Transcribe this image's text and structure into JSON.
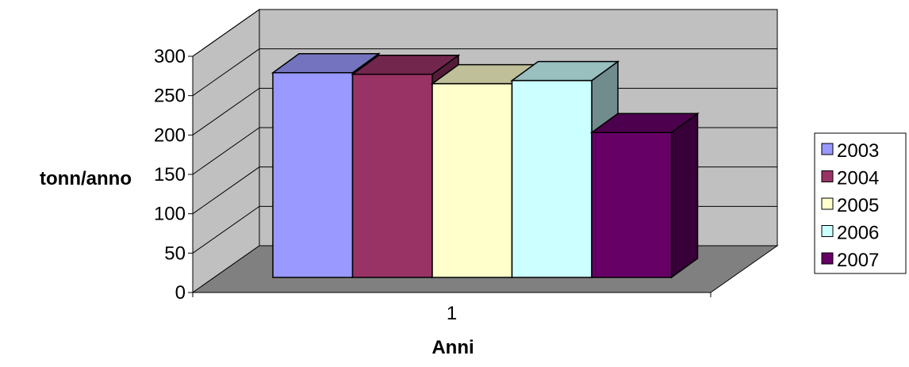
{
  "chart_data": {
    "type": "bar",
    "style": "3d-clustered-column",
    "title": "",
    "xlabel": "Anni",
    "ylabel": "tonn/anno",
    "categories": [
      "1"
    ],
    "ylim": [
      0,
      300
    ],
    "yticks": [
      "0",
      "50",
      "100",
      "150",
      "200",
      "250",
      "300"
    ],
    "grid": true,
    "legend_position": "right",
    "series": [
      {
        "name": "2003",
        "values": [
          260
        ],
        "color": "#9999FF"
      },
      {
        "name": "2004",
        "values": [
          258
        ],
        "color": "#993366"
      },
      {
        "name": "2005",
        "values": [
          246
        ],
        "color": "#FFFFCC"
      },
      {
        "name": "2006",
        "values": [
          250
        ],
        "color": "#CCFFFF"
      },
      {
        "name": "2007",
        "values": [
          184
        ],
        "color": "#660066"
      }
    ],
    "colors": {
      "back_wall": "#C0C0C0",
      "side_wall": "#C0C0C0",
      "floor": "#808080",
      "grid": "#000000"
    }
  }
}
